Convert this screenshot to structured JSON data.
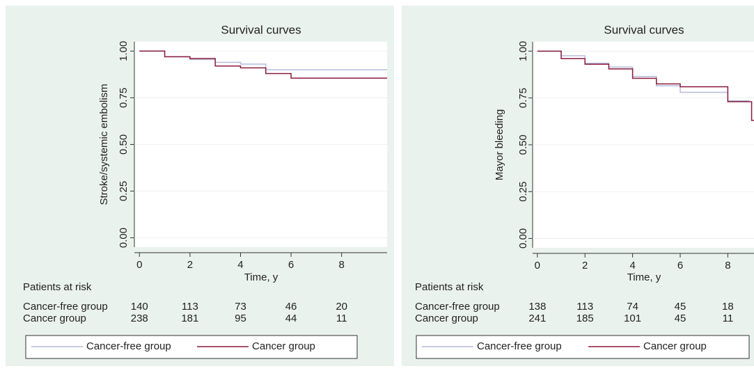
{
  "chart_data": [
    {
      "type": "step-line",
      "title": "Survival curves",
      "y_label": "Stroke/systemic embolism",
      "x_label": "Time, y",
      "xlim": [
        -0.2,
        9.8
      ],
      "ylim": [
        -0.05,
        1.05
      ],
      "xticks": [
        0,
        2,
        4,
        6,
        8
      ],
      "yticks": [
        {
          "value": 0,
          "label": "0.00"
        },
        {
          "value": 0.25,
          "label": "0.25"
        },
        {
          "value": 0.5,
          "label": "0.50"
        },
        {
          "value": 0.75,
          "label": "0.75"
        },
        {
          "value": 1,
          "label": "1.00"
        }
      ],
      "grid": true,
      "series": [
        {
          "name": "Cancer-free group",
          "color": "#b4bcdc",
          "x": [
            0,
            1,
            2,
            3,
            4,
            5,
            9.8
          ],
          "values": [
            1,
            0.97,
            0.955,
            0.94,
            0.93,
            0.9,
            0.9
          ]
        },
        {
          "name": "Cancer group",
          "color": "#8b1a3c",
          "x": [
            0,
            1,
            2,
            3,
            4,
            5,
            6,
            9.8
          ],
          "values": [
            1,
            0.97,
            0.96,
            0.92,
            0.91,
            0.88,
            0.855,
            0.855
          ]
        }
      ],
      "risk_table": {
        "title": "Patients at risk",
        "rows": [
          {
            "name": "Cancer-free group",
            "values": [
              140,
              113,
              73,
              46,
              20
            ]
          },
          {
            "name": "Cancer group",
            "values": [
              238,
              181,
              95,
              44,
              11
            ]
          }
        ]
      }
    },
    {
      "type": "step-line",
      "title": "Survival curves",
      "y_label": "Mayor bleeding",
      "x_label": "Time, y",
      "xlim": [
        -0.2,
        9.1
      ],
      "ylim": [
        -0.05,
        1.05
      ],
      "xticks": [
        0,
        2,
        4,
        6,
        8
      ],
      "yticks": [
        {
          "value": 0,
          "label": "0.00"
        },
        {
          "value": 0.25,
          "label": "0.25"
        },
        {
          "value": 0.5,
          "label": "0.50"
        },
        {
          "value": 0.75,
          "label": "0.75"
        },
        {
          "value": 1,
          "label": "1.00"
        }
      ],
      "grid": true,
      "series": [
        {
          "name": "Cancer-free group",
          "color": "#b4bcdc",
          "x": [
            0,
            1,
            2,
            3,
            4,
            5,
            6,
            8,
            8.9
          ],
          "values": [
            1,
            0.975,
            0.935,
            0.915,
            0.865,
            0.815,
            0.78,
            0.735,
            0.735
          ]
        },
        {
          "name": "Cancer group",
          "color": "#8b1a3c",
          "x": [
            0,
            1,
            2,
            3,
            4,
            5,
            6,
            8,
            9,
            9.1
          ],
          "values": [
            1,
            0.96,
            0.93,
            0.905,
            0.855,
            0.825,
            0.81,
            0.73,
            0.63,
            0.63
          ]
        }
      ],
      "risk_table": {
        "title": "Patients at risk",
        "rows": [
          {
            "name": "Cancer-free group",
            "values": [
              138,
              113,
              74,
              45,
              18
            ]
          },
          {
            "name": "Cancer group",
            "values": [
              241,
              185,
              101,
              45,
              11
            ]
          }
        ]
      }
    }
  ]
}
